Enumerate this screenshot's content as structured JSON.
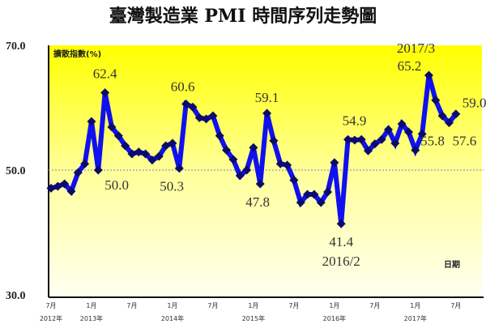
{
  "chart_data": {
    "type": "line",
    "title": "臺灣製造業 PMI 時間序列走勢圖",
    "ylabel": "擴散指數(%)",
    "xlabel": "日期",
    "ylim": [
      30,
      70
    ],
    "yticks": [
      "70.0",
      "50.0",
      "30.0"
    ],
    "reference_line": 50,
    "grid": false,
    "xticks": [
      {
        "month": "7月",
        "year": "2012年"
      },
      {
        "month": "1月",
        "year": "2013年"
      },
      {
        "month": "7月",
        "year": ""
      },
      {
        "month": "1月",
        "year": "2014年"
      },
      {
        "month": "7月",
        "year": ""
      },
      {
        "month": "1月",
        "year": "2015年"
      },
      {
        "month": "7月",
        "year": ""
      },
      {
        "month": "1月",
        "year": "2016年"
      },
      {
        "month": "7月",
        "year": ""
      },
      {
        "month": "1月",
        "year": "2017年"
      },
      {
        "month": "7月",
        "year": ""
      }
    ],
    "x_start": "2012/7",
    "x_end": "2017/7",
    "values": [
      47.1,
      47.4,
      47.8,
      46.6,
      49.6,
      51.0,
      57.8,
      50.0,
      62.4,
      56.9,
      55.5,
      53.9,
      52.6,
      52.9,
      52.6,
      51.6,
      52.2,
      53.9,
      54.3,
      50.3,
      60.6,
      60.1,
      58.4,
      58.2,
      58.7,
      55.5,
      53.2,
      51.7,
      49.1,
      50.0,
      53.6,
      47.8,
      59.1,
      54.7,
      51.0,
      50.8,
      48.4,
      44.8,
      46.1,
      46.1,
      44.8,
      46.5,
      51.2,
      41.4,
      54.9,
      54.8,
      54.9,
      53.1,
      54.2,
      54.9,
      56.5,
      54.3,
      57.4,
      56.1,
      53.2,
      55.8,
      65.2,
      61.2,
      58.7,
      57.6,
      59.0
    ],
    "data_labels": [
      {
        "index": 8,
        "text": "62.4"
      },
      {
        "index": 7,
        "text": "50.0"
      },
      {
        "index": 20,
        "text": "60.6"
      },
      {
        "index": 19,
        "text": "50.3"
      },
      {
        "index": 32,
        "text": "59.1"
      },
      {
        "index": 31,
        "text": "47.8"
      },
      {
        "index": 43,
        "text": "41.4"
      },
      {
        "index": 44,
        "text": "54.9"
      },
      {
        "index": 56,
        "text": "65.2"
      },
      {
        "index": 55,
        "text": "55.8"
      },
      {
        "index": 59,
        "text": "57.6"
      },
      {
        "index": 60,
        "text": "59.0"
      }
    ],
    "annotations": [
      {
        "index": 43,
        "text": "2016/2"
      },
      {
        "index": 56,
        "text": "2017/3"
      }
    ],
    "colors": {
      "line": "#1010f0",
      "marker": "#0b0b6b",
      "bg_top": "#ffff00",
      "bg_bottom": "#fffff0"
    }
  }
}
